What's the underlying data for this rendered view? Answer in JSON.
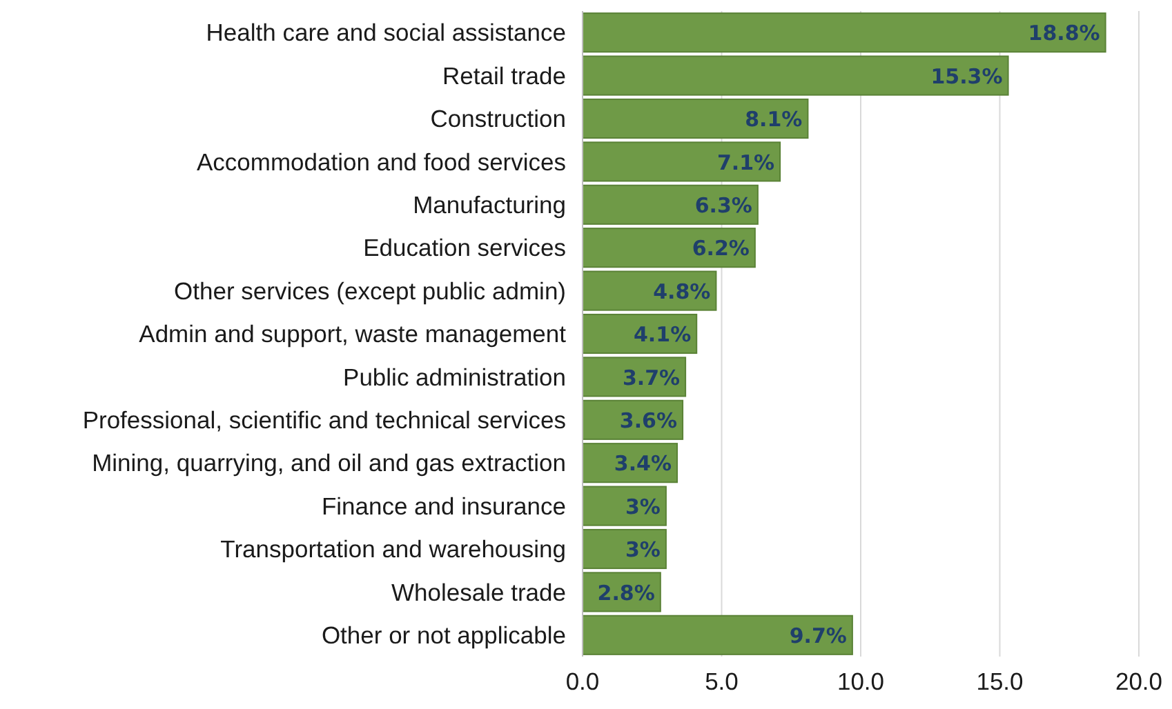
{
  "chart_data": {
    "type": "bar",
    "orientation": "horizontal",
    "categories": [
      "Health care and social assistance",
      "Retail trade",
      "Construction",
      "Accommodation and food services",
      "Manufacturing",
      "Education services",
      "Other services (except public admin)",
      "Admin and support, waste management",
      "Public administration",
      "Professional, scientific and technical services",
      "Mining, quarrying, and oil and gas extraction",
      "Finance and insurance",
      "Transportation and warehousing",
      "Wholesale trade",
      "Other or not applicable"
    ],
    "values": [
      18.8,
      15.3,
      8.1,
      7.1,
      6.3,
      6.2,
      4.8,
      4.1,
      3.7,
      3.6,
      3.4,
      3,
      3,
      2.8,
      9.7
    ],
    "value_labels": [
      "18.8%",
      "15.3%",
      "8.1%",
      "7.1%",
      "6.3%",
      "6.2%",
      "4.8%",
      "4.1%",
      "3.7%",
      "3.6%",
      "3.4%",
      "3%",
      "3%",
      "2.8%",
      "9.7%"
    ],
    "color": "#6f9a47",
    "xlim": [
      0,
      20
    ],
    "xticks": [
      {
        "value": 0,
        "label": "0.0"
      },
      {
        "value": 5,
        "label": "5.0"
      },
      {
        "value": 10,
        "label": "10.0"
      },
      {
        "value": 15,
        "label": "15.0"
      },
      {
        "value": 20,
        "label": "20.0"
      }
    ],
    "grid": "x"
  }
}
